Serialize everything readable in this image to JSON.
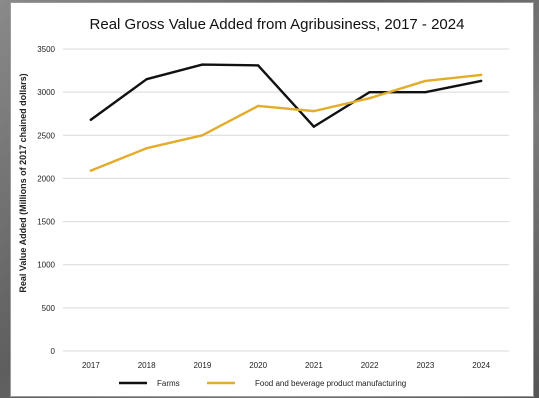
{
  "chart_data": {
    "type": "line",
    "title": "Real Gross Value Added from Agribusiness, 2017 - 2024",
    "xlabel": "",
    "ylabel": "Real Value Added (Millions of 2017 chained dollars)",
    "categories": [
      "2017",
      "2018",
      "2019",
      "2020",
      "2021",
      "2022",
      "2023",
      "2024"
    ],
    "yticks": [
      "0",
      "500",
      "1000",
      "1500",
      "2000",
      "2500",
      "3000",
      "3500"
    ],
    "ylim": [
      0,
      3500
    ],
    "grid": true,
    "legend_position": "bottom",
    "series": [
      {
        "name": "Farms",
        "color": "#111111",
        "values": [
          2680,
          3150,
          3320,
          3310,
          2600,
          3000,
          3000,
          3130
        ]
      },
      {
        "name": "Food and beverage product manufacturing",
        "color": "#e3ac2a",
        "values": [
          2090,
          2350,
          2500,
          2840,
          2780,
          2930,
          3130,
          3200
        ]
      }
    ]
  }
}
